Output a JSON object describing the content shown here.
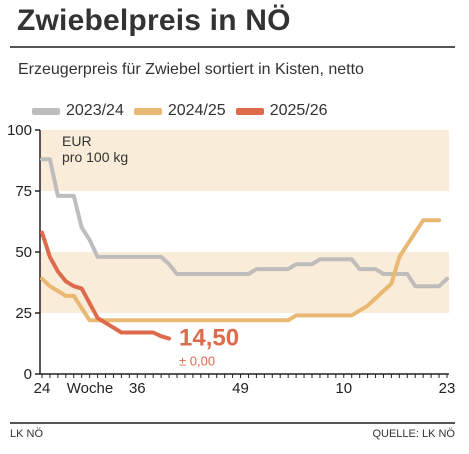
{
  "header": {
    "title": "Zwiebelpreis in NÖ",
    "subtitle": "Erzeugerpreis für Zwiebel sortiert in Kisten, netto"
  },
  "footer": {
    "source_left": "LK NÖ",
    "source_right": "QUELLE: LK NÖ"
  },
  "colors": {
    "band": "#f9ecd9",
    "series_2023": "#bfbcbc",
    "series_2024": "#e9b873",
    "series_2025": "#de6a4c",
    "axis": "#222222"
  },
  "chart_data": {
    "type": "line",
    "unit_label": [
      "EUR",
      "pro 100 kg"
    ],
    "xlabel": "Woche",
    "ylim": [
      0,
      100
    ],
    "y_ticks": [
      0,
      25,
      50,
      75,
      100
    ],
    "x_ticks": [
      {
        "label": "24",
        "index": 0
      },
      {
        "label": "36",
        "index": 12
      },
      {
        "label": "49",
        "index": 25
      },
      {
        "label": "10",
        "index": 38
      },
      {
        "label": "23",
        "index": 51
      }
    ],
    "shaded_bands": [
      [
        25,
        50
      ],
      [
        75,
        100
      ]
    ],
    "series": [
      {
        "name": "2023/24",
        "color": "#bfbcbc",
        "x": [
          0,
          1,
          2,
          3,
          4,
          5,
          6,
          7,
          8,
          9,
          10,
          11,
          12,
          13,
          14,
          15,
          16,
          17,
          18,
          19,
          20,
          21,
          22,
          23,
          24,
          25,
          26,
          27,
          28,
          29,
          30,
          31,
          32,
          33,
          34,
          35,
          36,
          37,
          38,
          39,
          40,
          41,
          42,
          43,
          44,
          45,
          46,
          47,
          48,
          49,
          50,
          51
        ],
        "values": [
          88,
          88,
          73,
          73,
          73,
          60,
          55,
          48,
          48,
          48,
          48,
          48,
          48,
          48,
          48,
          48,
          45,
          41,
          41,
          41,
          41,
          41,
          41,
          41,
          41,
          41,
          41,
          43,
          43,
          43,
          43,
          43,
          45,
          45,
          45,
          47,
          47,
          47,
          47,
          47,
          43,
          43,
          43,
          41,
          41,
          41,
          41,
          36,
          36,
          36,
          36,
          39
        ]
      },
      {
        "name": "2024/25",
        "color": "#e9b873",
        "x": [
          0,
          1,
          2,
          3,
          4,
          5,
          6,
          7,
          8,
          9,
          10,
          11,
          12,
          13,
          14,
          15,
          16,
          17,
          18,
          19,
          20,
          21,
          22,
          23,
          24,
          25,
          26,
          27,
          28,
          29,
          30,
          31,
          32,
          33,
          34,
          35,
          36,
          37,
          38,
          39,
          40,
          41,
          42,
          43,
          44,
          45,
          46,
          47,
          48,
          49,
          50
        ],
        "values": [
          39,
          36,
          34,
          32,
          32,
          27,
          22,
          22,
          22,
          22,
          22,
          22,
          22,
          22,
          22,
          22,
          22,
          22,
          22,
          22,
          22,
          22,
          22,
          22,
          22,
          22,
          22,
          22,
          22,
          22,
          22,
          22,
          24,
          24,
          24,
          24,
          24,
          24,
          24,
          24,
          26,
          28,
          31,
          34,
          37,
          48,
          53,
          58,
          63,
          63,
          63
        ]
      },
      {
        "name": "2025/26",
        "color": "#de6a4c",
        "x": [
          0,
          1,
          2,
          3,
          4,
          5,
          6,
          7,
          8,
          9,
          10,
          11,
          12,
          13,
          14,
          15,
          16
        ],
        "values": [
          58,
          48,
          42,
          38,
          36,
          35,
          29,
          23,
          21,
          19,
          17,
          17,
          17,
          17,
          17,
          15.5,
          14.5
        ]
      }
    ],
    "annotation": {
      "value": "14,50",
      "change": "± 0,00"
    }
  }
}
